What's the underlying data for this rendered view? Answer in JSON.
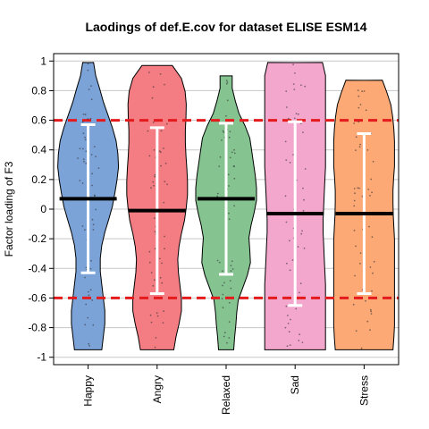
{
  "chart_data": {
    "type": "violin",
    "title": "Laodings of def.E.cov for dataset ELISE ESM14",
    "xlabel": "",
    "ylabel": "Factor loading of F3",
    "ylim": [
      -1.05,
      1.05
    ],
    "yticks": [
      1,
      0.8,
      0.6,
      0.4,
      0.2,
      0,
      -0.2,
      -0.4,
      -0.6,
      -0.8,
      -1
    ],
    "ytick_labels": [
      "1",
      "0.8",
      "0.6",
      "0.4",
      "0.2",
      "0",
      "-0.2",
      "-0.4",
      "-0.6",
      "-0.8",
      "-1"
    ],
    "grid": true,
    "reference_lines": [
      0.6,
      -0.6
    ],
    "reference_line_color": "#e41a1c",
    "categories": [
      "Happy",
      "Angry",
      "Relaxed",
      "Sad",
      "Stress"
    ],
    "series": [
      {
        "category": "Happy",
        "color": "#7ba3d8",
        "mean": 0.07,
        "sd_upper": 0.57,
        "sd_lower": -0.43,
        "min": -0.95,
        "max": 0.99,
        "density": [
          0.45,
          0.5,
          0.55,
          0.55,
          0.5,
          0.45,
          0.4,
          0.4,
          0.45,
          0.55,
          0.68,
          0.8,
          0.88,
          0.95,
          1.0,
          0.98,
          0.92,
          0.8,
          0.65,
          0.5,
          0.38,
          0.25,
          0.18
        ]
      },
      {
        "category": "Angry",
        "color": "#f47d83",
        "mean": -0.01,
        "sd_upper": 0.55,
        "sd_lower": -0.57,
        "min": -0.95,
        "max": 0.97,
        "density": [
          0.55,
          0.62,
          0.72,
          0.8,
          0.8,
          0.75,
          0.7,
          0.68,
          0.72,
          0.8,
          0.9,
          0.96,
          1.0,
          1.0,
          0.98,
          0.95,
          0.93,
          0.93,
          0.95,
          0.96,
          0.92,
          0.8,
          0.5
        ]
      },
      {
        "category": "Relaxed",
        "color": "#85c491",
        "mean": 0.07,
        "sd_upper": 0.58,
        "sd_lower": -0.44,
        "min": -0.95,
        "max": 0.9,
        "density": [
          0.25,
          0.28,
          0.32,
          0.35,
          0.4,
          0.55,
          0.7,
          0.8,
          0.78,
          0.75,
          0.82,
          0.92,
          1.0,
          1.0,
          0.96,
          0.9,
          0.84,
          0.78,
          0.62,
          0.42,
          0.3,
          0.2,
          0.2
        ]
      },
      {
        "category": "Sad",
        "color": "#f4a7cd",
        "mean": -0.03,
        "sd_upper": 0.59,
        "sd_lower": -0.65,
        "min": -0.95,
        "max": 0.99,
        "density": [
          1.0,
          1.0,
          1.0,
          1.0,
          1.0,
          1.0,
          0.98,
          0.96,
          0.94,
          0.92,
          0.92,
          0.94,
          0.96,
          0.98,
          1.0,
          1.0,
          1.0,
          1.0,
          1.0,
          1.0,
          1.0,
          1.0,
          0.9
        ]
      },
      {
        "category": "Stress",
        "color": "#fca976",
        "mean": -0.03,
        "sd_upper": 0.51,
        "sd_lower": -0.57,
        "min": -0.95,
        "max": 0.87,
        "density": [
          0.95,
          0.98,
          1.0,
          1.0,
          1.0,
          1.0,
          1.0,
          1.0,
          1.0,
          1.0,
          0.98,
          0.96,
          0.95,
          0.95,
          0.97,
          1.0,
          1.0,
          1.0,
          0.98,
          0.94,
          0.88,
          0.75,
          0.6
        ]
      }
    ]
  }
}
